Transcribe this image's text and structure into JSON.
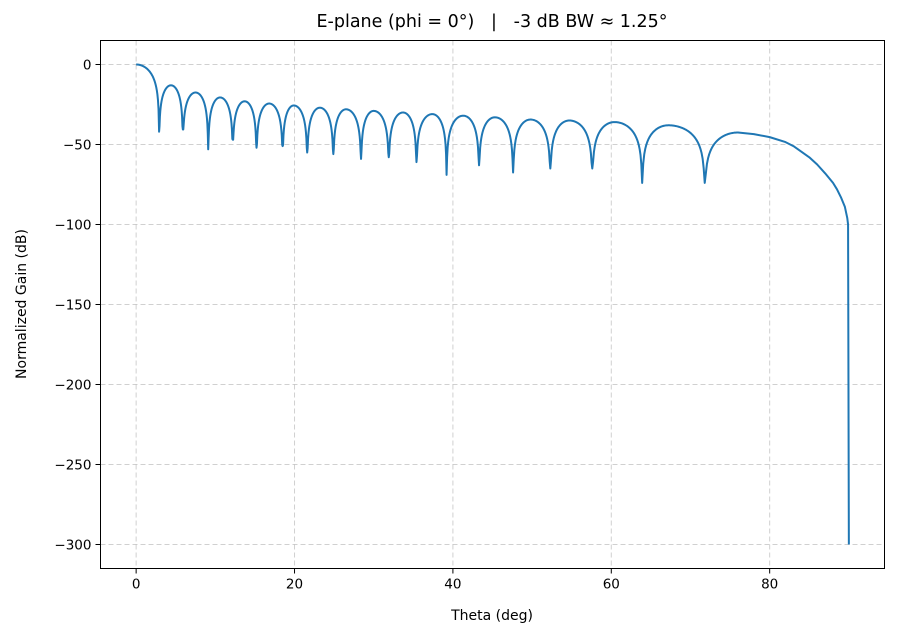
{
  "chart_data": {
    "type": "line",
    "title": "E-plane (phi = 0°)   |   -3 dB BW ≈ 1.25°",
    "xlabel": "Theta (deg)",
    "ylabel": "Normalized Gain (dB)",
    "xlim": [
      -4.5,
      94.5
    ],
    "ylim": [
      -315,
      15
    ],
    "xticks": [
      0,
      20,
      40,
      60,
      80
    ],
    "xtick_labels": [
      "0",
      "20",
      "40",
      "60",
      "80"
    ],
    "yticks": [
      0,
      -50,
      -100,
      -150,
      -200,
      -250,
      -300
    ],
    "ytick_labels": [
      "0",
      "−50",
      "−100",
      "−150",
      "−200",
      "−250",
      "−300"
    ],
    "grid": true,
    "line_color": "#1f77b4",
    "main_lobe_peak": [
      0,
      0
    ],
    "nulls": [
      [
        2.9,
        -42
      ],
      [
        5.9,
        -40.6
      ],
      [
        9.1,
        -53
      ],
      [
        12.2,
        -47
      ],
      [
        15.2,
        -52
      ],
      [
        18.5,
        -51
      ],
      [
        21.6,
        -55
      ],
      [
        24.9,
        -56
      ],
      [
        28.4,
        -59
      ],
      [
        31.9,
        -58
      ],
      [
        35.4,
        -61
      ],
      [
        39.2,
        -69
      ],
      [
        43.3,
        -63
      ],
      [
        47.6,
        -67.5
      ],
      [
        52.3,
        -65
      ],
      [
        57.6,
        -65
      ],
      [
        63.9,
        -74
      ],
      [
        71.8,
        -74
      ]
    ],
    "sidelobe_peaks": [
      [
        4.4,
        -13
      ],
      [
        7.5,
        -17.5
      ],
      [
        10.6,
        -20.6
      ],
      [
        13.7,
        -23
      ],
      [
        16.8,
        -24.4
      ],
      [
        19.9,
        -25.6
      ],
      [
        23.2,
        -27
      ],
      [
        26.5,
        -28
      ],
      [
        30.0,
        -29
      ],
      [
        33.7,
        -30
      ],
      [
        37.4,
        -31
      ],
      [
        41.3,
        -32
      ],
      [
        45.3,
        -33
      ],
      [
        49.8,
        -34.4
      ],
      [
        54.7,
        -35
      ],
      [
        60.4,
        -36
      ],
      [
        67.2,
        -38
      ],
      [
        76.0,
        -42.5
      ]
    ],
    "tail": [
      [
        76,
        -42.5
      ],
      [
        78,
        -43.5
      ],
      [
        80,
        -45.4
      ],
      [
        82,
        -48.5
      ],
      [
        83,
        -51
      ],
      [
        85,
        -58
      ],
      [
        86,
        -62.5
      ],
      [
        87,
        -68
      ],
      [
        88,
        -74
      ],
      [
        88.5,
        -78
      ],
      [
        89,
        -83
      ],
      [
        89.5,
        -89
      ],
      [
        89.8,
        -96
      ],
      [
        89.9,
        -100
      ],
      [
        90,
        -300
      ]
    ]
  }
}
